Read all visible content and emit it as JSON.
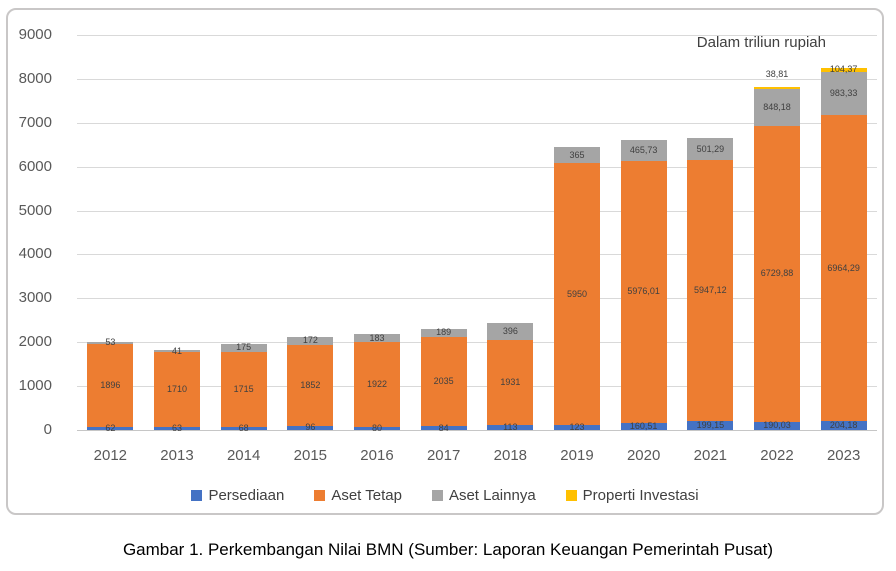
{
  "caption": "Gambar 1. Perkembangan Nilai BMN (Sumber: Laporan Keuangan Pemerintah Pusat)",
  "chart_data": {
    "type": "bar",
    "stacked": true,
    "unit_note": "Dalam triliun rupiah",
    "title": "",
    "xlabel": "",
    "ylabel": "",
    "ylim": [
      0,
      9000
    ],
    "ytick_step": 1000,
    "grid": true,
    "legend_position": "bottom",
    "categories": [
      "2012",
      "2013",
      "2014",
      "2015",
      "2016",
      "2017",
      "2018",
      "2019",
      "2020",
      "2021",
      "2022",
      "2023"
    ],
    "series": [
      {
        "name": "Persediaan",
        "color": "#4472C4",
        "values": [
          62,
          63,
          68,
          96,
          80,
          84,
          113,
          123,
          160.51,
          199.15,
          190.03,
          204.18
        ],
        "labels": [
          "62",
          "63",
          "68",
          "96",
          "80",
          "84",
          "113",
          "123",
          "160,51",
          "199,15",
          "190,03",
          "204,18"
        ],
        "label_above_indices": []
      },
      {
        "name": "Aset Tetap",
        "color": "#ED7D31",
        "values": [
          1896,
          1710,
          1715,
          1852,
          1922,
          2035,
          1931,
          5950,
          5976.01,
          5947.12,
          6729.88,
          6964.29
        ],
        "labels": [
          "1896",
          "1710",
          "1715",
          "1852",
          "1922",
          "2035",
          "1931",
          "5950",
          "5976,01",
          "5947,12",
          "6729,88",
          "6964,29"
        ],
        "label_above_indices": []
      },
      {
        "name": "Aset Lainnya",
        "color": "#A5A5A5",
        "values": [
          53,
          41,
          175,
          172,
          183,
          189,
          396,
          365,
          465.73,
          501.29,
          848.18,
          983.33
        ],
        "labels": [
          "53",
          "41",
          "175",
          "172",
          "183",
          "189",
          "396",
          "365",
          "465,73",
          "501,29",
          "848,18",
          "983,33"
        ],
        "label_above_indices": []
      },
      {
        "name": "Properti Investasi",
        "color": "#FFC000",
        "values": [
          0,
          0,
          0,
          0,
          0,
          0,
          0,
          0,
          0,
          0,
          38.81,
          104.37
        ],
        "labels": [
          "",
          "",
          "",
          "",
          "",
          "",
          "",
          "",
          "",
          "",
          "38,81",
          "104,37"
        ],
        "label_above_indices": [
          10
        ]
      }
    ],
    "colors": {
      "gridline": "#D9D9D9",
      "axis_text": "#595959",
      "data_label_text": "#404040",
      "frame_border": "#C9C7C7"
    }
  }
}
